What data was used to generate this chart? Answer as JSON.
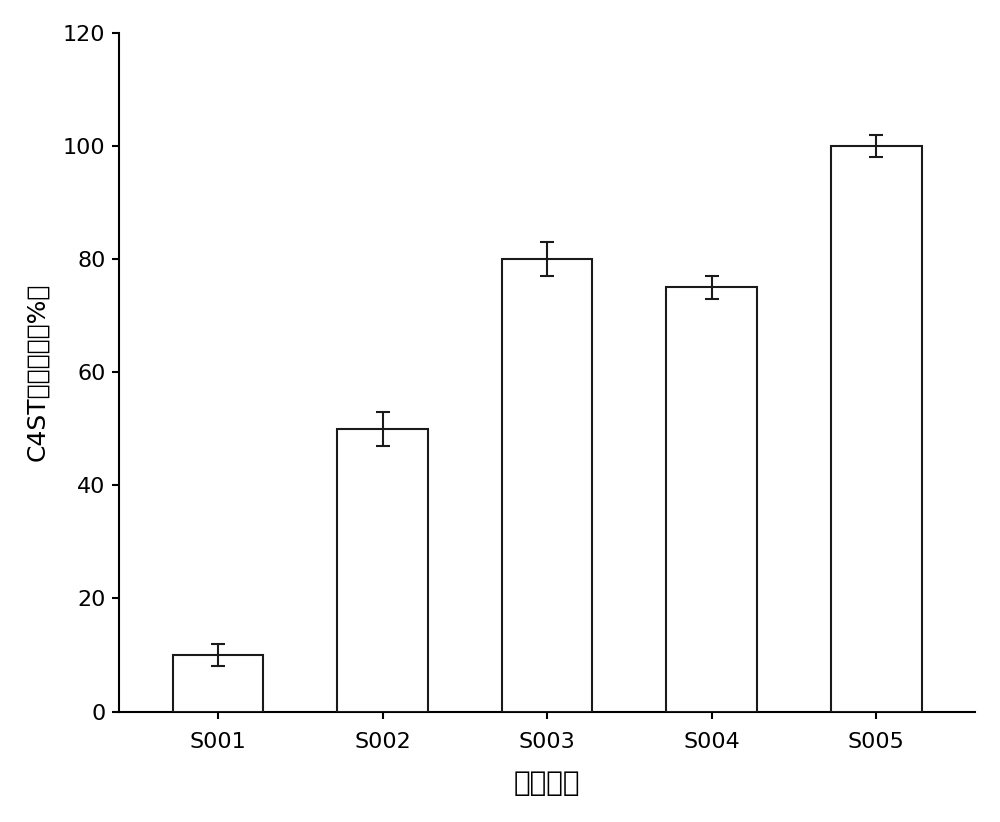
{
  "categories": [
    "S001",
    "S002",
    "S003",
    "S004",
    "S005"
  ],
  "values": [
    10,
    50,
    80,
    75,
    100
  ],
  "errors": [
    2,
    3,
    3,
    2,
    2
  ],
  "bar_color": "#ffffff",
  "bar_edgecolor": "#1a1a1a",
  "xlabel": "重组菌株",
  "ylabel": "C4ST相对酶活（%）",
  "ylim": [
    0,
    120
  ],
  "yticks": [
    0,
    20,
    40,
    60,
    80,
    100,
    120
  ],
  "bar_width": 0.55,
  "linewidth": 1.5,
  "capsize": 5,
  "error_linewidth": 1.5,
  "xlabel_fontsize": 20,
  "ylabel_fontsize": 18,
  "tick_fontsize": 16,
  "background_color": "#ffffff"
}
